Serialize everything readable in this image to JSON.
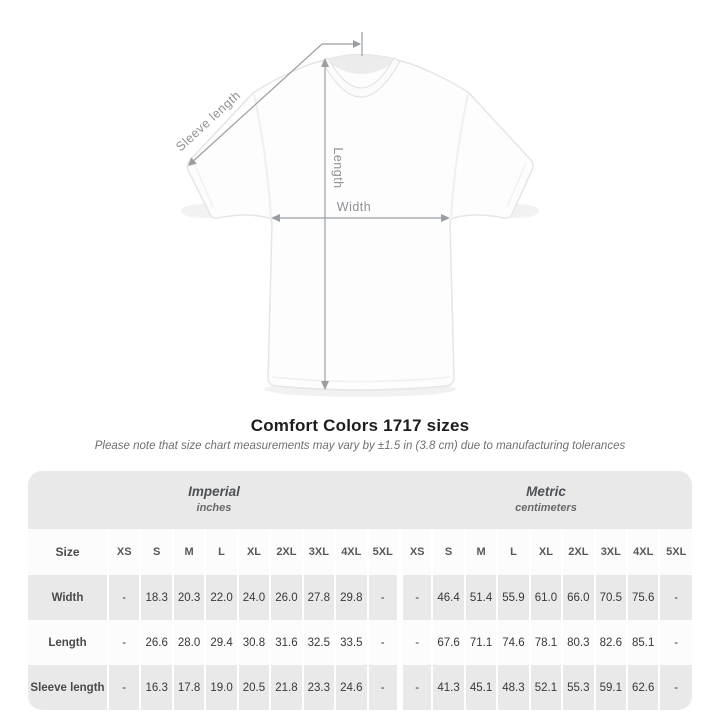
{
  "diagram": {
    "sleeve_label": "Sleeve length",
    "length_label": "Length",
    "width_label": "Width"
  },
  "heading": {
    "title": "Comfort Colors 1717 sizes",
    "note": "Please note that size chart measurements may vary by ±1.5 in (3.8 cm) due to manufacturing tolerances"
  },
  "table": {
    "groups": [
      {
        "name": "Imperial",
        "unit": "inches"
      },
      {
        "name": "Metric",
        "unit": "centimeters"
      }
    ],
    "size_column_header": "Size",
    "sizes": [
      "XS",
      "S",
      "M",
      "L",
      "XL",
      "2XL",
      "3XL",
      "4XL",
      "5XL"
    ],
    "rows": [
      {
        "label": "Width",
        "imperial": [
          "-",
          "18.3",
          "20.3",
          "22.0",
          "24.0",
          "26.0",
          "27.8",
          "29.8",
          "-"
        ],
        "metric": [
          "-",
          "46.4",
          "51.4",
          "55.9",
          "61.0",
          "66.0",
          "70.5",
          "75.6",
          "-"
        ]
      },
      {
        "label": "Length",
        "imperial": [
          "-",
          "26.6",
          "28.0",
          "29.4",
          "30.8",
          "31.6",
          "32.5",
          "33.5",
          "-"
        ],
        "metric": [
          "-",
          "67.6",
          "71.1",
          "74.6",
          "78.1",
          "80.3",
          "82.6",
          "85.1",
          "-"
        ]
      },
      {
        "label": "Sleeve length",
        "imperial": [
          "-",
          "16.3",
          "17.8",
          "19.0",
          "20.5",
          "21.8",
          "23.3",
          "24.6",
          "-"
        ],
        "metric": [
          "-",
          "41.3",
          "45.1",
          "48.3",
          "52.1",
          "55.3",
          "59.1",
          "62.6",
          "-"
        ]
      }
    ]
  },
  "colors": {
    "table_background": "#e9e9e9",
    "row_stripe": "#fcfcfc",
    "measure_line": "#9a9ea2",
    "measure_label": "#8d9095",
    "title_text": "#1d1d1f"
  }
}
